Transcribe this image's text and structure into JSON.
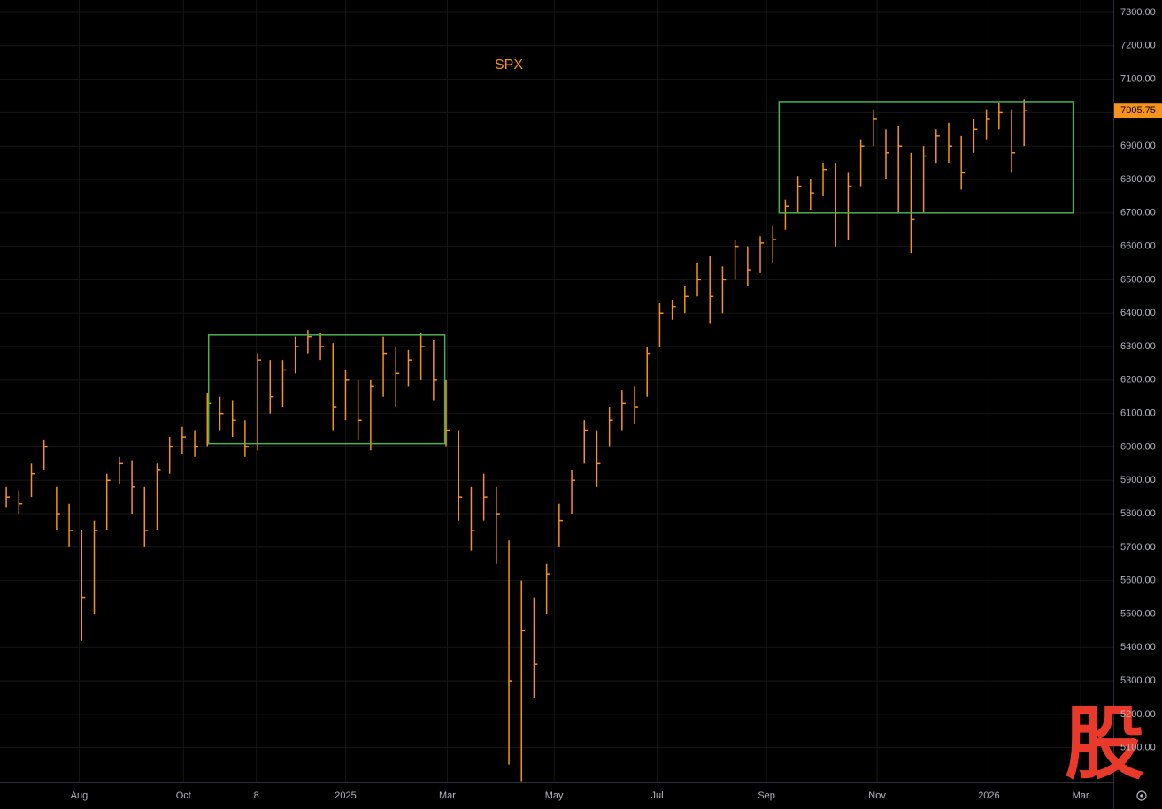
{
  "chart_data": {
    "type": "range-bar",
    "title": "SPX",
    "color": "#f7931a",
    "grid": true,
    "x": [
      0,
      1,
      2,
      3,
      4,
      5,
      6,
      7,
      8,
      9,
      10,
      11,
      12,
      13,
      14,
      15,
      16,
      17,
      18,
      19,
      20,
      21,
      22,
      23,
      24,
      25,
      26,
      27,
      28,
      29,
      30,
      31,
      32,
      33,
      34,
      35,
      36,
      37,
      38,
      39,
      40,
      41,
      42,
      43,
      44,
      45,
      46,
      47,
      48,
      49,
      50,
      51,
      52,
      53,
      54,
      55,
      56,
      57,
      58,
      59,
      60,
      61,
      62,
      63,
      64,
      65,
      66,
      67,
      68,
      69,
      70,
      71,
      72,
      73,
      74,
      75,
      76,
      77,
      78,
      79,
      80,
      81
    ],
    "high": [
      5880,
      5870,
      5950,
      6020,
      5880,
      5830,
      5750,
      5780,
      5920,
      5970,
      5960,
      5880,
      5950,
      6030,
      6060,
      6050,
      6160,
      6150,
      6140,
      6080,
      6280,
      6260,
      6260,
      6330,
      6350,
      6340,
      6310,
      6230,
      6200,
      6200,
      6330,
      6300,
      6290,
      6340,
      6320,
      6200,
      6050,
      5880,
      5920,
      5880,
      5720,
      5600,
      5550,
      5650,
      5830,
      5930,
      6080,
      6050,
      6120,
      6170,
      6180,
      6300,
      6430,
      6440,
      6480,
      6550,
      6570,
      6540,
      6620,
      6600,
      6630,
      6660,
      6740,
      6810,
      6800,
      6850,
      6850,
      6820,
      6920,
      7010,
      6950,
      6960,
      6880,
      6900,
      6950,
      6970,
      6930,
      6980,
      7010,
      7030,
      7010,
      7040
    ],
    "low": [
      5820,
      5800,
      5850,
      5930,
      5750,
      5700,
      5420,
      5500,
      5750,
      5890,
      5800,
      5700,
      5750,
      5920,
      5980,
      5970,
      6000,
      6050,
      6030,
      5970,
      5990,
      6100,
      6120,
      6220,
      6280,
      6260,
      6050,
      6080,
      6020,
      5990,
      6150,
      6120,
      6180,
      6200,
      6140,
      6000,
      5780,
      5690,
      5780,
      5650,
      5050,
      5000,
      5250,
      5500,
      5700,
      5800,
      5950,
      5880,
      6000,
      6050,
      6070,
      6150,
      6300,
      6380,
      6400,
      6450,
      6370,
      6400,
      6500,
      6480,
      6520,
      6550,
      6650,
      6700,
      6710,
      6750,
      6600,
      6620,
      6780,
      6900,
      6800,
      6700,
      6580,
      6700,
      6850,
      6850,
      6770,
      6880,
      6920,
      6950,
      6820,
      6900
    ],
    "close": [
      5850,
      5830,
      5920,
      6000,
      5800,
      5750,
      5550,
      5750,
      5900,
      5950,
      5880,
      5750,
      5930,
      6000,
      6030,
      6000,
      6130,
      6100,
      6080,
      6000,
      6260,
      6150,
      6230,
      6300,
      6330,
      6300,
      6120,
      6200,
      6080,
      6180,
      6280,
      6220,
      6260,
      6300,
      6200,
      6050,
      5850,
      5750,
      5850,
      5800,
      5300,
      5450,
      5350,
      5620,
      5780,
      5900,
      6050,
      5950,
      6080,
      6130,
      6120,
      6280,
      6400,
      6420,
      6450,
      6500,
      6450,
      6500,
      6600,
      6530,
      6610,
      6620,
      6720,
      6780,
      6760,
      6830,
      6700,
      6780,
      6900,
      6980,
      6880,
      6900,
      6680,
      6870,
      6930,
      6900,
      6820,
      6950,
      6980,
      7000,
      6880,
      7005.75
    ],
    "xlim": [
      -0.5,
      88.1
    ],
    "xticks": [
      {
        "value": 5.8,
        "label": "Aug"
      },
      {
        "value": 14.1,
        "label": "Oct"
      },
      {
        "value": 19.9,
        "label": "8"
      },
      {
        "value": 27.0,
        "label": "2025"
      },
      {
        "value": 35.1,
        "label": "Mar"
      },
      {
        "value": 43.6,
        "label": "May"
      },
      {
        "value": 51.8,
        "label": "Jul"
      },
      {
        "value": 60.5,
        "label": "Sep"
      },
      {
        "value": 69.3,
        "label": "Nov"
      },
      {
        "value": 78.2,
        "label": "2026"
      },
      {
        "value": 85.5,
        "label": "Mar"
      }
    ],
    "ylim": [
      4996,
      7337
    ],
    "yticks": [
      {
        "value": 5100,
        "label": "5100.00"
      },
      {
        "value": 5200,
        "label": "5200.00"
      },
      {
        "value": 5300,
        "label": "5300.00"
      },
      {
        "value": 5400,
        "label": "5400.00"
      },
      {
        "value": 5500,
        "label": "5500.00"
      },
      {
        "value": 5600,
        "label": "5600.00"
      },
      {
        "value": 5700,
        "label": "5700.00"
      },
      {
        "value": 5800,
        "label": "5800.00"
      },
      {
        "value": 5900,
        "label": "5900.00"
      },
      {
        "value": 6000,
        "label": "6000.00"
      },
      {
        "value": 6100,
        "label": "6100.00"
      },
      {
        "value": 6200,
        "label": "6200.00"
      },
      {
        "value": 6300,
        "label": "6300.00"
      },
      {
        "value": 6400,
        "label": "6400.00"
      },
      {
        "value": 6500,
        "label": "6500.00"
      },
      {
        "value": 6600,
        "label": "6600.00"
      },
      {
        "value": 6700,
        "label": "6700.00"
      },
      {
        "value": 6800,
        "label": "6800.00"
      },
      {
        "value": 6900,
        "label": "6900.00"
      },
      {
        "value": 7000,
        "label": "7000.00"
      },
      {
        "value": 7100,
        "label": "7100.00"
      },
      {
        "value": 7200,
        "label": "7200.00"
      },
      {
        "value": 7300,
        "label": "7300.00"
      }
    ],
    "boxes": [
      {
        "x": [
          16.1,
          34.9
        ],
        "y": [
          6010,
          6335
        ],
        "color": "#4caf50"
      },
      {
        "x": [
          61.5,
          84.9
        ],
        "y": [
          6700,
          7033
        ],
        "color": "#4caf50"
      }
    ],
    "watermark": "股"
  }
}
